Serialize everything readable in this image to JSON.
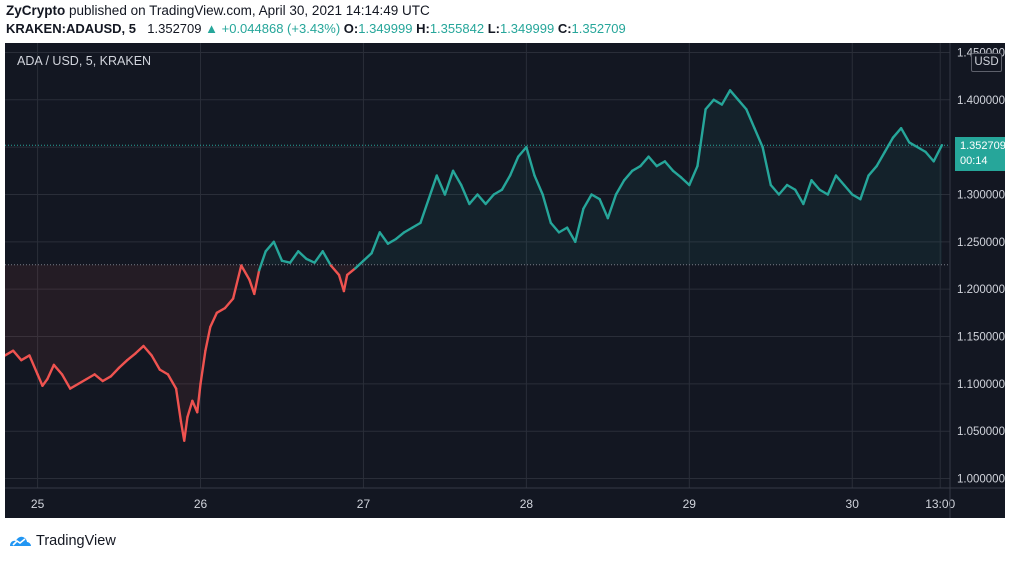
{
  "header": {
    "author": "ZyCrypto",
    "published_text": "published on TradingView.com, April 30, 2021 14:14:49 UTC",
    "symbol": "KRAKEN:ADAUSD, 5",
    "last": "1.352709",
    "change_arrow": "▲",
    "change": "+0.044868 (+3.43%)",
    "o_label": "O:",
    "o_value": "1.349999",
    "h_label": "H:",
    "h_value": "1.355842",
    "l_label": "L:",
    "l_value": "1.349999",
    "c_label": "C:",
    "c_value": "1.352709"
  },
  "chart_data": {
    "type": "line",
    "watermark": "ADA / USD, 5, KRAKEN",
    "currency_badge": "USD",
    "last_price_label": "1.352709",
    "countdown": "00:14",
    "baseline": 1.2258,
    "ylim": [
      0.99,
      1.46
    ],
    "y_ticks": [
      1.0,
      1.05,
      1.1,
      1.15,
      1.2,
      1.25,
      1.3,
      1.35,
      1.4,
      1.45
    ],
    "y_tick_labels": [
      "1.000000",
      "1.050000",
      "1.100000",
      "1.150000",
      "1.200000",
      "1.250000",
      "1.300000",
      "1.350000",
      "1.400000",
      "1.450000"
    ],
    "x_range": [
      24.8,
      30.6
    ],
    "x_ticks": [
      25,
      26,
      27,
      28,
      29,
      30,
      30.54
    ],
    "x_tick_labels": [
      "25",
      "26",
      "27",
      "28",
      "29",
      "30",
      "13:00"
    ],
    "colors": {
      "above": "#26a69a",
      "below": "#ef5350",
      "background": "#131722",
      "grid": "#2a2e39",
      "axis_text": "#d1d4dc"
    },
    "series": [
      {
        "x": [
          24.8,
          24.85,
          24.9,
          24.95,
          25.0,
          25.03,
          25.06,
          25.1,
          25.15,
          25.2,
          25.25,
          25.3,
          25.35,
          25.4,
          25.45,
          25.5,
          25.55,
          25.6,
          25.65,
          25.7,
          25.75,
          25.8,
          25.85,
          25.88,
          25.9,
          25.92,
          25.95,
          25.98,
          26.0,
          26.03,
          26.06,
          26.1,
          26.15,
          26.2,
          26.25,
          26.3,
          26.33,
          26.36,
          26.4,
          26.45,
          26.5,
          26.55,
          26.6,
          26.65,
          26.7,
          26.75,
          26.8,
          26.85,
          26.88,
          26.9,
          26.95,
          27.0,
          27.05,
          27.1,
          27.15,
          27.2,
          27.25,
          27.3,
          27.35,
          27.4,
          27.45,
          27.5,
          27.55,
          27.6,
          27.65,
          27.7,
          27.75,
          27.8,
          27.85,
          27.9,
          27.95,
          28.0,
          28.05,
          28.1,
          28.15,
          28.2,
          28.25,
          28.3,
          28.35,
          28.4,
          28.45,
          28.5,
          28.55,
          28.6,
          28.65,
          28.7,
          28.75,
          28.8,
          28.85,
          28.9,
          28.95,
          29.0,
          29.05,
          29.1,
          29.15,
          29.2,
          29.25,
          29.3,
          29.35,
          29.4,
          29.45,
          29.5,
          29.55,
          29.6,
          29.65,
          29.7,
          29.75,
          29.8,
          29.85,
          29.9,
          29.95,
          30.0,
          30.05,
          30.1,
          30.15,
          30.2,
          30.25,
          30.3,
          30.35,
          30.4,
          30.45,
          30.5,
          30.55
        ],
        "y": [
          1.13,
          1.135,
          1.125,
          1.13,
          1.11,
          1.098,
          1.105,
          1.12,
          1.11,
          1.095,
          1.1,
          1.105,
          1.11,
          1.103,
          1.108,
          1.117,
          1.125,
          1.132,
          1.14,
          1.13,
          1.115,
          1.11,
          1.095,
          1.06,
          1.04,
          1.065,
          1.082,
          1.07,
          1.1,
          1.135,
          1.16,
          1.175,
          1.18,
          1.19,
          1.225,
          1.21,
          1.195,
          1.22,
          1.24,
          1.25,
          1.23,
          1.228,
          1.24,
          1.232,
          1.228,
          1.24,
          1.225,
          1.215,
          1.198,
          1.215,
          1.222,
          1.23,
          1.238,
          1.26,
          1.248,
          1.253,
          1.26,
          1.265,
          1.27,
          1.295,
          1.32,
          1.3,
          1.325,
          1.31,
          1.29,
          1.3,
          1.29,
          1.3,
          1.305,
          1.32,
          1.34,
          1.35,
          1.32,
          1.3,
          1.27,
          1.26,
          1.265,
          1.25,
          1.285,
          1.3,
          1.295,
          1.275,
          1.3,
          1.315,
          1.325,
          1.33,
          1.34,
          1.33,
          1.335,
          1.325,
          1.318,
          1.31,
          1.33,
          1.39,
          1.4,
          1.395,
          1.41,
          1.4,
          1.39,
          1.37,
          1.35,
          1.31,
          1.3,
          1.31,
          1.305,
          1.29,
          1.315,
          1.305,
          1.3,
          1.32,
          1.31,
          1.3,
          1.295,
          1.32,
          1.33,
          1.345,
          1.36,
          1.37,
          1.355,
          1.35,
          1.345,
          1.335,
          1.352
        ]
      }
    ]
  },
  "footer": {
    "brand": "TradingView"
  }
}
